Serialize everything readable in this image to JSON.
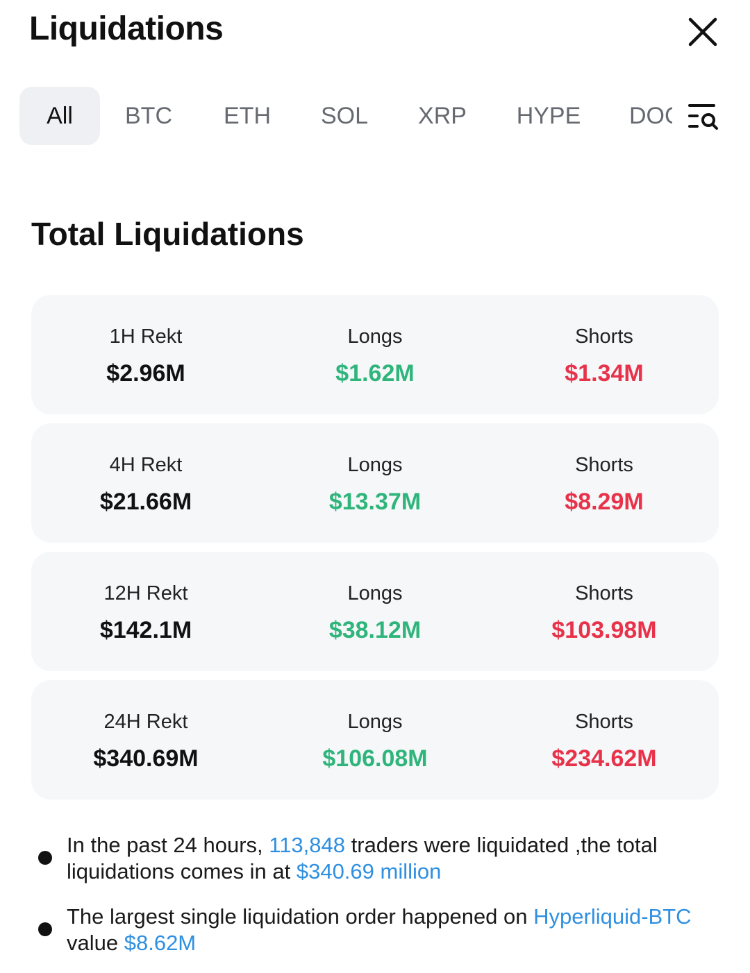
{
  "header": {
    "title": "Liquidations"
  },
  "tabs": [
    {
      "label": "All",
      "active": true
    },
    {
      "label": "BTC"
    },
    {
      "label": "ETH"
    },
    {
      "label": "SOL"
    },
    {
      "label": "XRP"
    },
    {
      "label": "HYPE"
    },
    {
      "label": "DOGE"
    }
  ],
  "section": {
    "title": "Total Liquidations"
  },
  "rekt": [
    {
      "period_label": "1H Rekt",
      "total": "$2.96M",
      "longs_label": "Longs",
      "longs": "$1.62M",
      "shorts_label": "Shorts",
      "shorts": "$1.34M"
    },
    {
      "period_label": "4H Rekt",
      "total": "$21.66M",
      "longs_label": "Longs",
      "longs": "$13.37M",
      "shorts_label": "Shorts",
      "shorts": "$8.29M"
    },
    {
      "period_label": "12H Rekt",
      "total": "$142.1M",
      "longs_label": "Longs",
      "longs": "$38.12M",
      "shorts_label": "Shorts",
      "shorts": "$103.98M"
    },
    {
      "period_label": "24H Rekt",
      "total": "$340.69M",
      "longs_label": "Longs",
      "longs": "$106.08M",
      "shorts_label": "Shorts",
      "shorts": "$234.62M"
    }
  ],
  "notes": {
    "n1_a": "In the past 24 hours, ",
    "n1_traders": "113,848",
    "n1_b": " traders were liquidated ,the total liquidations comes in at ",
    "n1_amount": "$340.69 million",
    "n2_a": "The largest single liquidation order happened on ",
    "n2_pair": "Hyperliquid-BTC",
    "n2_b": " value ",
    "n2_value": "$8.62M"
  },
  "icons": {
    "close": "close-icon",
    "filter": "filter-search-icon",
    "bullet": "bullet-icon"
  },
  "colors": {
    "long": "#2fb57b",
    "short": "#e8324a",
    "link": "#2f8fe0",
    "card_bg": "#f5f7f9",
    "tab_active_bg": "#eef0f3"
  }
}
